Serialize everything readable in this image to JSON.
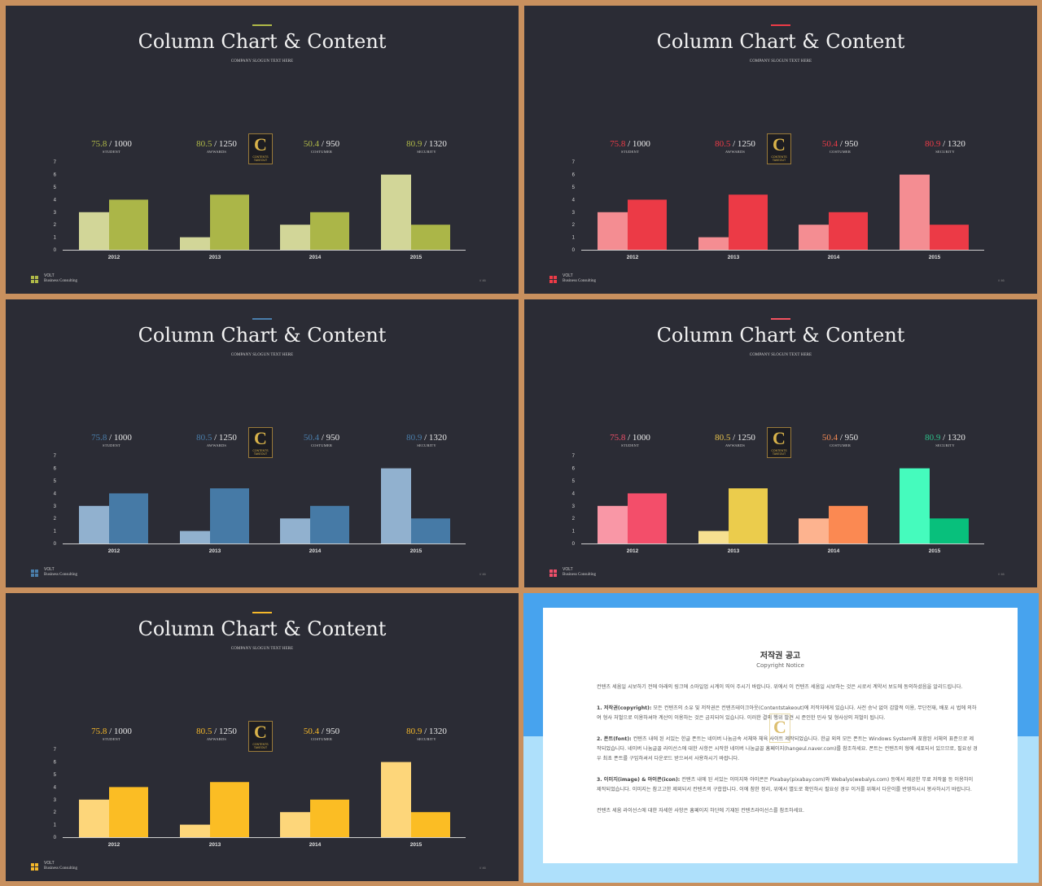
{
  "slide_common": {
    "title": "Column Chart & Content",
    "subtitle": "COMPANY SLOGUN TEXT HERE",
    "badge_letter": "C",
    "badge_text_1": "CONTENTS",
    "badge_text_2": "TAKEOUT",
    "footer_brand": "VOLT",
    "footer_sub": "Business Consulting",
    "page_number": "// 46"
  },
  "slides": [
    {
      "accent": "#b0ba48",
      "stats": [
        {
          "value": "75.8",
          "total": "1000",
          "label": "STUDENT",
          "color": "#b0ba48"
        },
        {
          "value": "80.5",
          "total": "1250",
          "label": "AWWARDS",
          "color": "#b0ba48"
        },
        {
          "value": "50.4",
          "total": "950",
          "label": "COSTUMER",
          "color": "#b0ba48"
        },
        {
          "value": "80.9",
          "total": "1320",
          "label": "SECURITY",
          "color": "#b0ba48"
        }
      ],
      "light_colors": [
        "#d2d698",
        "#d2d698",
        "#d2d698",
        "#d2d698"
      ],
      "dark_colors": [
        "#abb648",
        "#abb648",
        "#abb648",
        "#abb648"
      ],
      "logo_color": "#b0ba48"
    },
    {
      "accent": "#ed3b47",
      "stats": [
        {
          "value": "75.8",
          "total": "1000",
          "label": "STUDENT",
          "color": "#ed3b47"
        },
        {
          "value": "80.5",
          "total": "1250",
          "label": "AWWARDS",
          "color": "#ed3b47"
        },
        {
          "value": "50.4",
          "total": "950",
          "label": "COSTUMER",
          "color": "#ed3b47"
        },
        {
          "value": "80.9",
          "total": "1320",
          "label": "SECURITY",
          "color": "#ed3b47"
        }
      ],
      "light_colors": [
        "#f48d92",
        "#f48d92",
        "#f48d92",
        "#f48d92"
      ],
      "dark_colors": [
        "#ec3a46",
        "#ec3a46",
        "#ec3a46",
        "#ec3a46"
      ],
      "logo_color": "#ed3b47"
    },
    {
      "accent": "#4a7eab",
      "stats": [
        {
          "value": "75.8",
          "total": "1000",
          "label": "STUDENT",
          "color": "#4a7eab"
        },
        {
          "value": "80.5",
          "total": "1250",
          "label": "AWWARDS",
          "color": "#4a7eab"
        },
        {
          "value": "50.4",
          "total": "950",
          "label": "COSTUMER",
          "color": "#4a7eab"
        },
        {
          "value": "80.9",
          "total": "1320",
          "label": "SECURITY",
          "color": "#4a7eab"
        }
      ],
      "light_colors": [
        "#91b1cf",
        "#91b1cf",
        "#91b1cf",
        "#91b1cf"
      ],
      "dark_colors": [
        "#467aa6",
        "#467aa6",
        "#467aa6",
        "#467aa6"
      ],
      "logo_color": "#4a7eab"
    },
    {
      "accent": "#f2525f",
      "stats": [
        {
          "value": "75.8",
          "total": "1000",
          "label": "STUDENT",
          "color": "#f0506a"
        },
        {
          "value": "80.5",
          "total": "1250",
          "label": "AWWARDS",
          "color": "#e6c24d"
        },
        {
          "value": "50.4",
          "total": "950",
          "label": "COSTUMER",
          "color": "#f38a55"
        },
        {
          "value": "80.9",
          "total": "1320",
          "label": "SECURITY",
          "color": "#2dc08a"
        }
      ],
      "light_colors": [
        "#f997a6",
        "#f7e090",
        "#fdb38f",
        "#45fbbd"
      ],
      "dark_colors": [
        "#f34e6a",
        "#ebcc4c",
        "#fb8952",
        "#08c07c"
      ],
      "logo_color": "#f0506a"
    },
    {
      "accent": "#f5b82a",
      "stats": [
        {
          "value": "75.8",
          "total": "1000",
          "label": "STUDENT",
          "color": "#f5b82a"
        },
        {
          "value": "80.5",
          "total": "1250",
          "label": "AWWARDS",
          "color": "#f5b82a"
        },
        {
          "value": "50.4",
          "total": "950",
          "label": "COSTUMER",
          "color": "#f5b82a"
        },
        {
          "value": "80.9",
          "total": "1320",
          "label": "SECURITY",
          "color": "#f5b82a"
        }
      ],
      "light_colors": [
        "#fdd67a",
        "#fdd67a",
        "#fdd67a",
        "#fdd67a"
      ],
      "dark_colors": [
        "#fbbd24",
        "#fbbd24",
        "#fbbd24",
        "#fbbd24"
      ],
      "logo_color": "#f5b82a"
    }
  ],
  "chart_data": [
    {
      "type": "bar",
      "categories": [
        "2012",
        "2013",
        "2014",
        "2015"
      ],
      "series": [
        {
          "values": [
            3,
            1,
            2,
            6
          ]
        },
        {
          "values": [
            4,
            4.4,
            3,
            2
          ]
        }
      ],
      "ylim": [
        0,
        7
      ],
      "yticks": [
        "0",
        "1",
        "2",
        "3",
        "4",
        "5",
        "6",
        "7"
      ],
      "title": "",
      "xlabel": "",
      "ylabel": "",
      "grid": false
    },
    {
      "type": "bar",
      "categories": [
        "2012",
        "2013",
        "2014",
        "2015"
      ],
      "series": [
        {
          "values": [
            3,
            1,
            2,
            6
          ]
        },
        {
          "values": [
            4,
            4.4,
            3,
            2
          ]
        }
      ],
      "ylim": [
        0,
        7
      ],
      "yticks": [
        "0",
        "1",
        "2",
        "3",
        "4",
        "5",
        "6",
        "7"
      ],
      "title": "",
      "xlabel": "",
      "ylabel": "",
      "grid": false
    },
    {
      "type": "bar",
      "categories": [
        "2012",
        "2013",
        "2014",
        "2015"
      ],
      "series": [
        {
          "values": [
            3,
            1,
            2,
            6
          ]
        },
        {
          "values": [
            4,
            4.4,
            3,
            2
          ]
        }
      ],
      "ylim": [
        0,
        7
      ],
      "yticks": [
        "0",
        "1",
        "2",
        "3",
        "4",
        "5",
        "6",
        "7"
      ],
      "title": "",
      "xlabel": "",
      "ylabel": "",
      "grid": false
    },
    {
      "type": "bar",
      "categories": [
        "2012",
        "2013",
        "2014",
        "2015"
      ],
      "series": [
        {
          "values": [
            3,
            1,
            2,
            6
          ]
        },
        {
          "values": [
            4,
            4.4,
            3,
            2
          ]
        }
      ],
      "ylim": [
        0,
        7
      ],
      "yticks": [
        "0",
        "1",
        "2",
        "3",
        "4",
        "5",
        "6",
        "7"
      ],
      "title": "",
      "xlabel": "",
      "ylabel": "",
      "grid": false
    },
    {
      "type": "bar",
      "categories": [
        "2012",
        "2013",
        "2014",
        "2015"
      ],
      "series": [
        {
          "values": [
            3,
            1,
            2,
            6
          ]
        },
        {
          "values": [
            4,
            4.4,
            3,
            2
          ]
        }
      ],
      "ylim": [
        0,
        7
      ],
      "yticks": [
        "0",
        "1",
        "2",
        "3",
        "4",
        "5",
        "6",
        "7"
      ],
      "title": "",
      "xlabel": "",
      "ylabel": "",
      "grid": false
    }
  ],
  "notice": {
    "title": "저작권 공고",
    "subtitle": "Copyright Notice",
    "badge_letter": "C",
    "para0": "컨텐츠 세움일 시보하기 전에 아래의 링크에 소마일업 시계이 띄어 주시기 바랍니다. 위에서 이 컨텐츠 세움일 시보하는 것은 시로서 계약서 보도에 동의하셨음을 알리드립니다.",
    "para1_head": "1. 저작권(copyright):",
    "para1": " 모든 컨텐츠의 소유 및 저작권은 컨텐츠테이크아웃(Contentstakeout)에 저작자에게 있습니다. 사전 승낙 없이 갑발적 이용, 무단전재, 배포 시 법에 의하여 형사 처벌으로 이용하셔야 계산이 이용하는 것은 금지되어 있습니다. 이러한 결의 행위 발견 시 준인한 민사 및 형사상의 처벌이 됩니다.",
    "para2_head": "2. 폰트(font):",
    "para2": " 컨텐츠 내에 된 서있는 한글 폰트는 네이버 나눔금속 서체와 체육 사이트 제작되었습니다. 한글 외의 모든 폰트는 Windows System에 포함된 서체의 표준으로 제작되었습니다. 네이버 나눔글꼴 라이선스에 대한 사항은 시작한 네이버 나눔글꼴 홈페이지(hangeul.naver.com)를 참조하세요. 폰트는 컨텐츠의 형에 세포되서 있으므로, 필요성 경우 최초 폰트를 구입하셔서 다운로드 받으셔서 사용하시기 바랍니다.",
    "para3_head": "3. 이미지(image) & 아이콘(icon):",
    "para3": " 컨텐츠 내에 된 서있는 이미지와 아이콘은 Pixabay(pixabay.com)와 Webalys(webalys.com) 등에서 제공한 무료 저작물 등 이용하이 제작되었습니다. 이미지는 참고고한 제외되서 컨텐츠의 구합합니다. 이에 참한 정리, 위에서 별도로 확인하시 필요성 경우 이거를 위해서 다운이를 반영하시시 봉사하시기 바랍니다.",
    "para4": "컨텐츠 세움 라이선스에 대한 자세한 사항은 홈페이지 하단에 기재된 컨텐츠라이선스를 참조하세요."
  }
}
